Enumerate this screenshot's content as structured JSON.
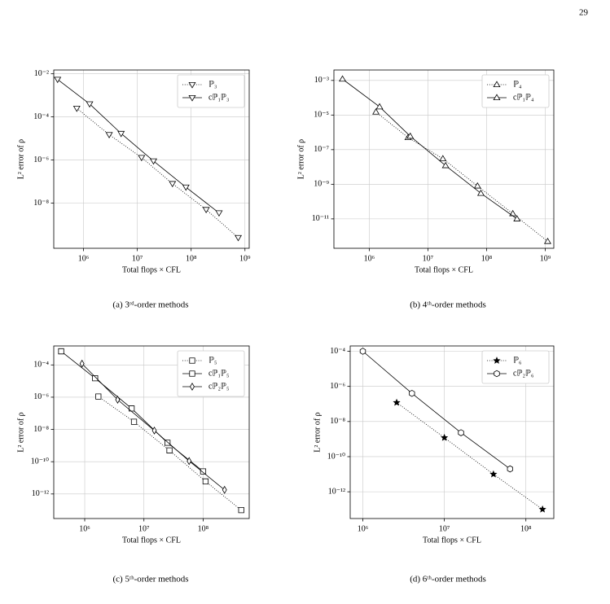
{
  "page_number": "29",
  "chart_data": [
    {
      "type": "line",
      "caption": "(a) 3ʳᵈ-order methods",
      "x_label": "Total flops × CFL",
      "y_label": "L² error of ρ",
      "xscale": "log",
      "yscale": "log",
      "grid": true,
      "legend": "upper right",
      "xlim": [
        280000,
        1200000000
      ],
      "ylim": [
        8e-11,
        0.015
      ],
      "xticks": [
        {
          "value": 1000000,
          "label": "10⁶"
        },
        {
          "value": 10000000,
          "label": "10⁷"
        },
        {
          "value": 100000000,
          "label": "10⁸"
        },
        {
          "value": 1000000000,
          "label": "10⁹"
        }
      ],
      "yticks": [
        {
          "value": 1e-08,
          "label": "10⁻⁸"
        },
        {
          "value": 1e-06,
          "label": "10⁻⁶"
        },
        {
          "value": 0.0001,
          "label": "10⁻⁴"
        },
        {
          "value": 0.01,
          "label": "10⁻²"
        }
      ],
      "series": [
        {
          "name": "ℙ₃",
          "color": "#000000",
          "linestyle": "dotted",
          "marker": "v",
          "x": [
            750000,
            3000000,
            12000000,
            45000000,
            190000000,
            750000000
          ],
          "values": [
            0.00025,
            1.5e-05,
            1.3e-06,
            8e-08,
            5e-09,
            2.5e-10
          ]
        },
        {
          "name": "cℙ₁ℙ₃",
          "color": "#000000",
          "linestyle": "solid",
          "marker": "v",
          "x": [
            330000,
            1300000,
            5000000,
            20000000,
            80000000,
            330000000
          ],
          "values": [
            0.0055,
            0.0004,
            1.7e-05,
            9e-07,
            5.5e-08,
            3.5e-09
          ]
        }
      ]
    },
    {
      "type": "line",
      "caption": "(b) 4ᵗʰ-order methods",
      "x_label": "Total flops × CFL",
      "y_label": "L² error of ρ",
      "xscale": "log",
      "yscale": "log",
      "grid": true,
      "legend": "upper right",
      "xlim": [
        250000,
        1400000000
      ],
      "ylim": [
        2e-13,
        0.004
      ],
      "xticks": [
        {
          "value": 1000000,
          "label": "10⁶"
        },
        {
          "value": 10000000,
          "label": "10⁷"
        },
        {
          "value": 100000000,
          "label": "10⁸"
        },
        {
          "value": 1000000000,
          "label": "10⁹"
        }
      ],
      "yticks": [
        {
          "value": 1e-11,
          "label": "10⁻¹¹"
        },
        {
          "value": 1e-09,
          "label": "10⁻⁹"
        },
        {
          "value": 1e-07,
          "label": "10⁻⁷"
        },
        {
          "value": 1e-05,
          "label": "10⁻⁵"
        },
        {
          "value": 0.001,
          "label": "10⁻³"
        }
      ],
      "series": [
        {
          "name": "ℙ₄",
          "color": "#000000",
          "linestyle": "dotted",
          "marker": "^",
          "x": [
            1300000,
            4600000,
            18000000,
            70000000,
            280000000,
            1100000000
          ],
          "values": [
            1.5e-05,
            5e-07,
            3e-08,
            8e-10,
            2e-11,
            5e-13
          ]
        },
        {
          "name": "cℙ₁ℙ₄",
          "color": "#000000",
          "linestyle": "solid",
          "marker": "^",
          "x": [
            350000,
            1500000,
            5000000,
            20000000,
            80000000,
            330000000
          ],
          "values": [
            0.0012,
            3e-05,
            6e-07,
            1.2e-08,
            3e-10,
            1e-11
          ]
        }
      ]
    },
    {
      "type": "line",
      "caption": "(c) 5ᵗʰ-order methods",
      "x_label": "Total flops × CFL",
      "y_label": "L² error of ρ",
      "xscale": "log",
      "yscale": "log",
      "grid": true,
      "legend": "upper right",
      "xlim": [
        300000,
        600000000
      ],
      "ylim": [
        3e-14,
        0.0015
      ],
      "xticks": [
        {
          "value": 1000000,
          "label": "10⁶"
        },
        {
          "value": 10000000,
          "label": "10⁷"
        },
        {
          "value": 100000000,
          "label": "10⁸"
        }
      ],
      "yticks": [
        {
          "value": 1e-12,
          "label": "10⁻¹²"
        },
        {
          "value": 1e-10,
          "label": "10⁻¹⁰"
        },
        {
          "value": 1e-08,
          "label": "10⁻⁸"
        },
        {
          "value": 1e-06,
          "label": "10⁻⁶"
        },
        {
          "value": 0.0001,
          "label": "10⁻⁴"
        }
      ],
      "series": [
        {
          "name": "ℙ₅",
          "color": "#000000",
          "linestyle": "dotted",
          "marker": "s",
          "x": [
            1700000,
            6800000,
            27000000,
            110000000,
            440000000
          ],
          "values": [
            1.1e-06,
            3e-08,
            5e-10,
            6e-12,
            1e-13
          ]
        },
        {
          "name": "cℙ₁ℙ₅",
          "color": "#000000",
          "linestyle": "solid",
          "marker": "s",
          "x": [
            400000,
            1500000,
            6200000,
            25000000,
            100000000
          ],
          "values": [
            0.0007,
            1.5e-05,
            2e-07,
            1.5e-09,
            2.5e-11
          ]
        },
        {
          "name": "cℙ₂ℙ₅",
          "color": "#000000",
          "linestyle": "solid",
          "marker": "d",
          "x": [
            900000,
            3600000,
            15000000,
            58000000,
            230000000
          ],
          "values": [
            0.00012,
            7e-07,
            8.5e-09,
            1.1e-10,
            1.8e-12
          ]
        }
      ]
    },
    {
      "type": "line",
      "caption": "(d) 6ᵗʰ-order methods",
      "x_label": "Total flops × CFL",
      "y_label": "L² error of ρ",
      "xscale": "log",
      "yscale": "log",
      "grid": true,
      "legend": "upper right",
      "xlim": [
        700000,
        220000000
      ],
      "ylim": [
        3e-14,
        0.0002
      ],
      "xticks": [
        {
          "value": 1000000,
          "label": "10⁶"
        },
        {
          "value": 10000000,
          "label": "10⁷"
        },
        {
          "value": 100000000,
          "label": "10⁸"
        }
      ],
      "yticks": [
        {
          "value": 1e-12,
          "label": "10⁻¹²"
        },
        {
          "value": 1e-10,
          "label": "10⁻¹⁰"
        },
        {
          "value": 1e-08,
          "label": "10⁻⁸"
        },
        {
          "value": 1e-06,
          "label": "10⁻⁶"
        },
        {
          "value": 0.0001,
          "label": "10⁻⁴"
        }
      ],
      "series": [
        {
          "name": "ℙ₆",
          "color": "#000000",
          "linestyle": "dotted",
          "marker": "*",
          "x": [
            2600000,
            10000000,
            40000000,
            160000000
          ],
          "values": [
            1.2e-07,
            1.2e-09,
            1e-11,
            1e-13
          ]
        },
        {
          "name": "cℙ₂ℙ₆",
          "color": "#000000",
          "linestyle": "solid",
          "marker": "h",
          "x": [
            1000000,
            4000000,
            16000000,
            64000000
          ],
          "values": [
            0.0001,
            4e-07,
            2.3e-09,
            2e-11
          ]
        }
      ]
    }
  ]
}
